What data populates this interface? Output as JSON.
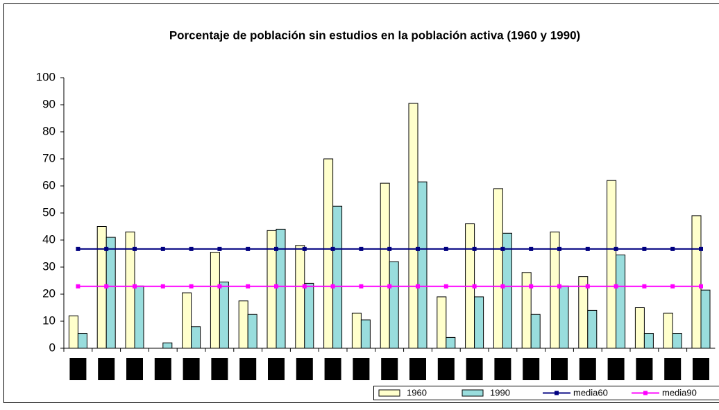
{
  "chart_data": {
    "type": "bar",
    "title": "Porcentaje de población sin estudios en la población activa (1960 y 1990)",
    "categories": [
      null,
      null,
      null,
      null,
      null,
      null,
      null,
      null,
      null,
      null,
      null,
      null,
      null,
      null,
      null,
      null,
      null,
      null,
      null,
      null,
      null,
      null,
      null
    ],
    "series": [
      {
        "name": "1960",
        "type": "bar",
        "color": "#ffffcc",
        "values": [
          12,
          45,
          43,
          0,
          20.5,
          35.5,
          17.5,
          43.5,
          38,
          70,
          13,
          61,
          90.5,
          19,
          46,
          59,
          28,
          43,
          26.5,
          62,
          15,
          13,
          49
        ]
      },
      {
        "name": "1990",
        "type": "bar",
        "color": "#99dddd",
        "values": [
          5.5,
          41,
          23,
          2,
          8,
          24.5,
          12.5,
          44,
          24,
          52.5,
          10.5,
          32,
          61.5,
          4,
          19,
          42.5,
          12.5,
          23,
          14,
          34.5,
          5.5,
          5.5,
          21.5
        ]
      },
      {
        "name": "media60",
        "type": "line",
        "color": "#000080",
        "values": [
          36.7,
          36.7,
          36.7,
          36.7,
          36.7,
          36.7,
          36.7,
          36.7,
          36.7,
          36.7,
          36.7,
          36.7,
          36.7,
          36.7,
          36.7,
          36.7,
          36.7,
          36.7,
          36.7,
          36.7,
          36.7,
          36.7,
          36.7
        ]
      },
      {
        "name": "media90",
        "type": "line",
        "color": "#ff00ff",
        "values": [
          22.9,
          22.9,
          22.9,
          22.9,
          22.9,
          22.9,
          22.9,
          22.9,
          22.9,
          22.9,
          22.9,
          22.9,
          22.9,
          22.9,
          22.9,
          22.9,
          22.9,
          22.9,
          22.9,
          22.9,
          22.9,
          22.9,
          22.9
        ]
      }
    ],
    "ylim": [
      0,
      100
    ],
    "yticks": [
      0,
      10,
      20,
      30,
      40,
      50,
      60,
      70,
      80,
      90,
      100
    ],
    "grid": false,
    "legend": "bottom-right"
  }
}
